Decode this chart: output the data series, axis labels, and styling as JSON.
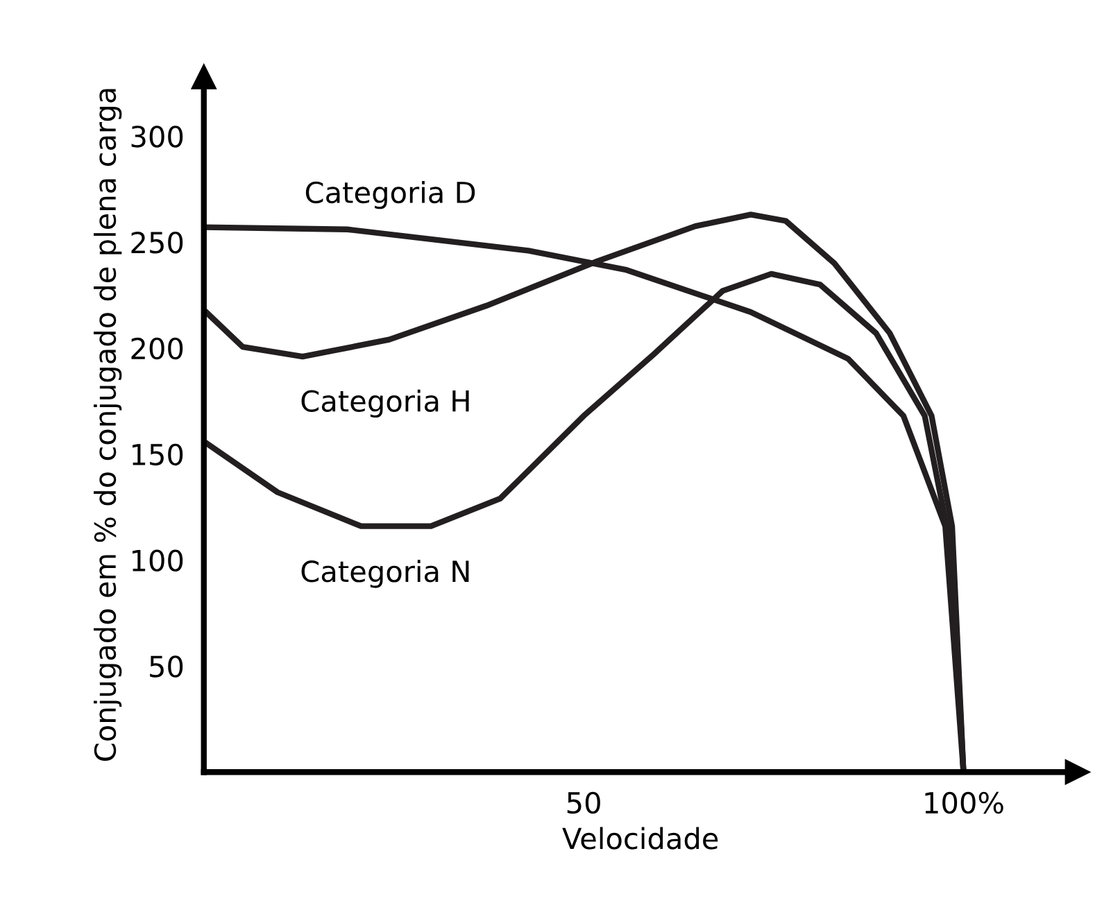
{
  "chart_data": {
    "type": "line",
    "xlabel": "Velocidade",
    "ylabel": "Conjugado em % do conjugado de plena carga",
    "xlim": [
      0,
      115
    ],
    "ylim": [
      0,
      328
    ],
    "xticks": [
      {
        "value": 50,
        "label": "50"
      },
      {
        "value": 100,
        "label": "100%"
      }
    ],
    "yticks": [
      50,
      100,
      150,
      200,
      250,
      300
    ],
    "grid": false,
    "marker": "none",
    "line_style": "solid",
    "series": [
      {
        "name": "Categoria D",
        "color": "#231f20",
        "x": [
          0,
          18.9,
          42.7,
          55.5,
          72,
          84.8,
          92.1,
          97.6,
          100
        ],
        "values": [
          257,
          256,
          246,
          237,
          217,
          195,
          168,
          116,
          0
        ]
      },
      {
        "name": "Categoria H",
        "color": "#231f20",
        "x": [
          0,
          5.1,
          13,
          24.4,
          37.2,
          51.8,
          64.7,
          72,
          76.6,
          83,
          90.3,
          95.8,
          98.5,
          100
        ],
        "values": [
          218,
          200.6,
          196,
          204,
          220,
          241,
          257.5,
          263,
          260,
          240,
          207,
          168,
          116,
          0
        ]
      },
      {
        "name": "Categoria N",
        "color": "#231f20",
        "x": [
          0,
          9.7,
          20.7,
          29.9,
          39,
          50,
          59.2,
          68.3,
          74.7,
          81.1,
          88.5,
          94.9,
          98.5,
          100
        ],
        "values": [
          156,
          132,
          116,
          116,
          129,
          168,
          197,
          227,
          235,
          230,
          207,
          168,
          103,
          0
        ]
      }
    ]
  }
}
